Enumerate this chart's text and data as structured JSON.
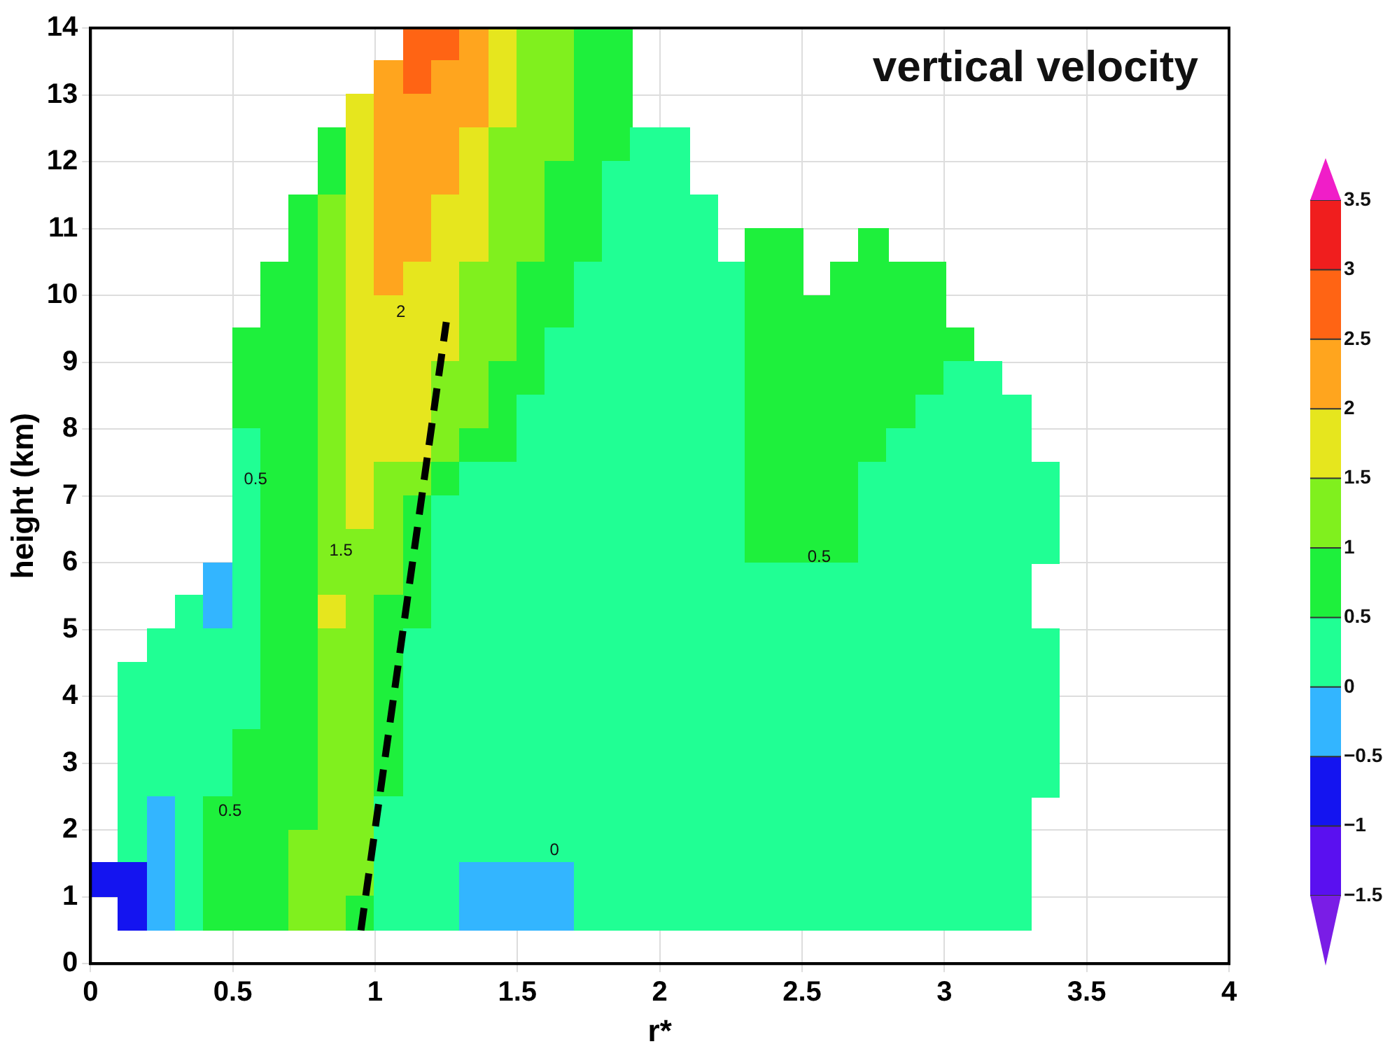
{
  "chart_data": {
    "type": "heatmap",
    "title": "vertical velocity",
    "xlabel": "r*",
    "ylabel": "height (km)",
    "x": [
      0.05,
      0.15,
      0.25,
      0.35,
      0.45,
      0.55,
      0.65,
      0.75,
      0.85,
      0.95,
      1.05,
      1.15,
      1.25,
      1.35,
      1.45,
      1.55,
      1.65,
      1.75,
      1.85,
      1.95,
      2.05,
      2.15,
      2.25,
      2.35,
      2.45,
      2.55,
      2.65,
      2.75,
      2.85,
      2.95,
      3.05,
      3.15,
      3.25,
      3.35
    ],
    "y": [
      13.75,
      13.25,
      12.75,
      12.25,
      11.75,
      11.25,
      10.75,
      10.25,
      9.75,
      9.25,
      8.75,
      8.25,
      7.75,
      7.25,
      6.75,
      6.25,
      5.75,
      5.25,
      4.75,
      4.25,
      3.75,
      3.25,
      2.75,
      2.25,
      1.75,
      1.25,
      0.75
    ],
    "cells": [
      [
        null,
        null,
        null,
        null,
        null,
        null,
        null,
        null,
        null,
        null,
        null,
        2.75,
        2.75,
        2.25,
        1.75,
        1.25,
        1.25,
        0.75,
        0.75,
        null,
        null,
        null,
        null,
        null,
        null,
        null,
        null,
        null,
        null,
        null,
        null,
        null,
        null,
        null
      ],
      [
        null,
        null,
        null,
        null,
        null,
        null,
        null,
        null,
        null,
        null,
        2.25,
        2.75,
        2.25,
        2.25,
        1.75,
        1.25,
        1.25,
        0.75,
        0.75,
        null,
        null,
        null,
        null,
        null,
        null,
        null,
        null,
        null,
        null,
        null,
        null,
        null,
        null,
        null
      ],
      [
        null,
        null,
        null,
        null,
        null,
        null,
        null,
        null,
        null,
        1.75,
        2.25,
        2.25,
        2.25,
        2.25,
        1.75,
        1.25,
        1.25,
        0.75,
        0.75,
        null,
        null,
        null,
        null,
        null,
        null,
        null,
        null,
        null,
        null,
        null,
        null,
        null,
        null,
        null
      ],
      [
        null,
        null,
        null,
        null,
        null,
        null,
        null,
        null,
        0.75,
        1.75,
        2.25,
        2.25,
        2.25,
        1.75,
        1.25,
        1.25,
        1.25,
        0.75,
        0.75,
        0.25,
        0.25,
        null,
        null,
        null,
        null,
        null,
        null,
        null,
        null,
        null,
        null,
        null,
        null,
        null
      ],
      [
        null,
        null,
        null,
        null,
        null,
        null,
        null,
        null,
        0.75,
        1.75,
        2.25,
        2.25,
        2.25,
        1.75,
        1.25,
        1.25,
        0.75,
        0.75,
        0.25,
        0.25,
        0.25,
        null,
        null,
        null,
        null,
        null,
        null,
        null,
        null,
        null,
        null,
        null,
        null,
        null
      ],
      [
        null,
        null,
        null,
        null,
        null,
        null,
        null,
        0.75,
        1.25,
        1.75,
        2.25,
        2.25,
        1.75,
        1.75,
        1.25,
        1.25,
        0.75,
        0.75,
        0.25,
        0.25,
        0.25,
        0.25,
        null,
        null,
        null,
        null,
        null,
        null,
        null,
        null,
        null,
        null,
        null,
        null
      ],
      [
        null,
        null,
        null,
        null,
        null,
        null,
        null,
        0.75,
        1.25,
        1.75,
        2.25,
        2.25,
        1.75,
        1.75,
        1.25,
        1.25,
        0.75,
        0.75,
        0.25,
        0.25,
        0.25,
        0.25,
        null,
        0.75,
        0.75,
        null,
        null,
        0.75,
        null,
        null,
        null,
        null,
        null,
        null
      ],
      [
        null,
        null,
        null,
        null,
        null,
        null,
        0.75,
        0.75,
        1.25,
        1.75,
        2.25,
        1.75,
        1.75,
        1.25,
        1.25,
        0.75,
        0.75,
        0.25,
        0.25,
        0.25,
        0.25,
        0.25,
        0.25,
        0.75,
        0.75,
        null,
        0.75,
        0.75,
        0.75,
        0.75,
        null,
        null,
        null,
        null
      ],
      [
        null,
        null,
        null,
        null,
        null,
        null,
        0.75,
        0.75,
        1.25,
        1.75,
        1.75,
        1.75,
        1.75,
        1.25,
        1.25,
        0.75,
        0.75,
        0.25,
        0.25,
        0.25,
        0.25,
        0.25,
        0.25,
        0.75,
        0.75,
        0.75,
        0.75,
        0.75,
        0.75,
        0.75,
        null,
        null,
        null,
        null
      ],
      [
        null,
        null,
        null,
        null,
        null,
        0.75,
        0.75,
        0.75,
        1.25,
        1.75,
        1.75,
        1.75,
        1.75,
        1.25,
        1.25,
        0.75,
        0.25,
        0.25,
        0.25,
        0.25,
        0.25,
        0.25,
        0.25,
        0.75,
        0.75,
        0.75,
        0.75,
        0.75,
        0.75,
        0.75,
        0.75,
        null,
        null,
        null
      ],
      [
        null,
        null,
        null,
        null,
        null,
        0.75,
        0.75,
        0.75,
        1.25,
        1.75,
        1.75,
        1.75,
        1.25,
        1.25,
        0.75,
        0.75,
        0.25,
        0.25,
        0.25,
        0.25,
        0.25,
        0.25,
        0.25,
        0.75,
        0.75,
        0.75,
        0.75,
        0.75,
        0.75,
        0.75,
        0.25,
        0.25,
        null,
        null
      ],
      [
        null,
        null,
        null,
        null,
        null,
        0.75,
        0.75,
        0.75,
        1.25,
        1.75,
        1.75,
        1.75,
        1.25,
        1.25,
        0.75,
        0.25,
        0.25,
        0.25,
        0.25,
        0.25,
        0.25,
        0.25,
        0.25,
        0.75,
        0.75,
        0.75,
        0.75,
        0.75,
        0.75,
        0.25,
        0.25,
        0.25,
        0.25,
        null
      ],
      [
        null,
        null,
        null,
        null,
        null,
        0.25,
        0.75,
        0.75,
        1.25,
        1.75,
        1.75,
        1.75,
        1.25,
        0.75,
        0.75,
        0.25,
        0.25,
        0.25,
        0.25,
        0.25,
        0.25,
        0.25,
        0.25,
        0.75,
        0.75,
        0.75,
        0.75,
        0.75,
        0.25,
        0.25,
        0.25,
        0.25,
        0.25,
        null
      ],
      [
        null,
        null,
        null,
        null,
        null,
        0.25,
        0.75,
        0.75,
        1.25,
        1.75,
        1.25,
        1.25,
        0.75,
        0.25,
        0.25,
        0.25,
        0.25,
        0.25,
        0.25,
        0.25,
        0.25,
        0.25,
        0.25,
        0.75,
        0.75,
        0.75,
        0.75,
        0.25,
        0.25,
        0.25,
        0.25,
        0.25,
        0.25,
        0.25
      ],
      [
        null,
        null,
        null,
        null,
        null,
        0.25,
        0.75,
        0.75,
        1.25,
        1.75,
        1.25,
        0.75,
        0.25,
        0.25,
        0.25,
        0.25,
        0.25,
        0.25,
        0.25,
        0.25,
        0.25,
        0.25,
        0.25,
        0.75,
        0.75,
        0.75,
        0.75,
        0.25,
        0.25,
        0.25,
        0.25,
        0.25,
        0.25,
        0.25
      ],
      [
        null,
        null,
        null,
        null,
        null,
        0.25,
        0.75,
        0.75,
        1.25,
        1.25,
        1.25,
        0.75,
        0.25,
        0.25,
        0.25,
        0.25,
        0.25,
        0.25,
        0.25,
        0.25,
        0.25,
        0.25,
        0.25,
        0.75,
        0.75,
        0.75,
        0.75,
        0.25,
        0.25,
        0.25,
        0.25,
        0.25,
        0.25,
        0.25
      ],
      [
        null,
        null,
        null,
        null,
        -0.25,
        0.25,
        0.75,
        0.75,
        1.25,
        1.25,
        1.25,
        0.75,
        0.25,
        0.25,
        0.25,
        0.25,
        0.25,
        0.25,
        0.25,
        0.25,
        0.25,
        0.25,
        0.25,
        0.25,
        0.25,
        0.25,
        0.25,
        0.25,
        0.25,
        0.25,
        0.25,
        0.25,
        0.25,
        null
      ],
      [
        null,
        null,
        null,
        0.25,
        -0.25,
        0.25,
        0.75,
        0.75,
        1.75,
        1.25,
        0.75,
        0.75,
        0.25,
        0.25,
        0.25,
        0.25,
        0.25,
        0.25,
        0.25,
        0.25,
        0.25,
        0.25,
        0.25,
        0.25,
        0.25,
        0.25,
        0.25,
        0.25,
        0.25,
        0.25,
        0.25,
        0.25,
        0.25,
        null
      ],
      [
        null,
        null,
        0.25,
        0.25,
        0.25,
        0.25,
        0.75,
        0.75,
        1.25,
        1.25,
        0.75,
        0.25,
        0.25,
        0.25,
        0.25,
        0.25,
        0.25,
        0.25,
        0.25,
        0.25,
        0.25,
        0.25,
        0.25,
        0.25,
        0.25,
        0.25,
        0.25,
        0.25,
        0.25,
        0.25,
        0.25,
        0.25,
        0.25,
        0.25
      ],
      [
        null,
        0.25,
        0.25,
        0.25,
        0.25,
        0.25,
        0.75,
        0.75,
        1.25,
        1.25,
        0.75,
        0.25,
        0.25,
        0.25,
        0.25,
        0.25,
        0.25,
        0.25,
        0.25,
        0.25,
        0.25,
        0.25,
        0.25,
        0.25,
        0.25,
        0.25,
        0.25,
        0.25,
        0.25,
        0.25,
        0.25,
        0.25,
        0.25,
        0.25
      ],
      [
        null,
        0.25,
        0.25,
        0.25,
        0.25,
        0.25,
        0.75,
        0.75,
        1.25,
        1.25,
        0.75,
        0.25,
        0.25,
        0.25,
        0.25,
        0.25,
        0.25,
        0.25,
        0.25,
        0.25,
        0.25,
        0.25,
        0.25,
        0.25,
        0.25,
        0.25,
        0.25,
        0.25,
        0.25,
        0.25,
        0.25,
        0.25,
        0.25,
        0.25
      ],
      [
        null,
        0.25,
        0.25,
        0.25,
        0.25,
        0.75,
        0.75,
        0.75,
        1.25,
        1.25,
        0.75,
        0.25,
        0.25,
        0.25,
        0.25,
        0.25,
        0.25,
        0.25,
        0.25,
        0.25,
        0.25,
        0.25,
        0.25,
        0.25,
        0.25,
        0.25,
        0.25,
        0.25,
        0.25,
        0.25,
        0.25,
        0.25,
        0.25,
        0.25
      ],
      [
        null,
        0.25,
        0.25,
        0.25,
        0.25,
        0.75,
        0.75,
        0.75,
        1.25,
        1.25,
        0.75,
        0.25,
        0.25,
        0.25,
        0.25,
        0.25,
        0.25,
        0.25,
        0.25,
        0.25,
        0.25,
        0.25,
        0.25,
        0.25,
        0.25,
        0.25,
        0.25,
        0.25,
        0.25,
        0.25,
        0.25,
        0.25,
        0.25,
        0.25
      ],
      [
        null,
        0.25,
        -0.25,
        0.25,
        0.75,
        0.75,
        0.75,
        0.75,
        1.25,
        1.25,
        0.25,
        0.25,
        0.25,
        0.25,
        0.25,
        0.25,
        0.25,
        0.25,
        0.25,
        0.25,
        0.25,
        0.25,
        0.25,
        0.25,
        0.25,
        0.25,
        0.25,
        0.25,
        0.25,
        0.25,
        0.25,
        0.25,
        0.25,
        null
      ],
      [
        null,
        0.25,
        -0.25,
        0.25,
        0.75,
        0.75,
        0.75,
        1.25,
        1.25,
        1.25,
        0.25,
        0.25,
        0.25,
        0.25,
        0.25,
        0.25,
        0.25,
        0.25,
        0.25,
        0.25,
        0.25,
        0.25,
        0.25,
        0.25,
        0.25,
        0.25,
        0.25,
        0.25,
        0.25,
        0.25,
        0.25,
        0.25,
        0.25,
        null
      ],
      [
        -0.75,
        -0.75,
        -0.25,
        0.25,
        0.75,
        0.75,
        0.75,
        1.25,
        1.25,
        1.25,
        0.25,
        0.25,
        0.25,
        -0.25,
        -0.25,
        -0.25,
        -0.25,
        0.25,
        0.25,
        0.25,
        0.25,
        0.25,
        0.25,
        0.25,
        0.25,
        0.25,
        0.25,
        0.25,
        0.25,
        0.25,
        0.25,
        0.25,
        0.25,
        null
      ],
      [
        null,
        -0.75,
        -0.25,
        0.25,
        0.75,
        0.75,
        0.75,
        1.25,
        1.25,
        0.75,
        0.25,
        0.25,
        0.25,
        -0.25,
        -0.25,
        -0.25,
        -0.25,
        0.25,
        0.25,
        0.25,
        0.25,
        0.25,
        0.25,
        0.25,
        0.25,
        0.25,
        0.25,
        0.25,
        0.25,
        0.25,
        0.25,
        0.25,
        0.25,
        null
      ]
    ],
    "colors": [
      "#7a1de6",
      "#5a10f0",
      "#1414f0",
      "#33b5ff",
      "#20ff94",
      "#1ef03c",
      "#80f01e",
      "#e6e61e",
      "#ffa51e",
      "#ff6414",
      "#f01e1e",
      "#f01ec8"
    ],
    "clim": [
      -1.5,
      3.5
    ],
    "cticks": [
      {
        "value": -1.5,
        "label": "−1.5"
      },
      {
        "value": -1,
        "label": "−1"
      },
      {
        "value": -0.5,
        "label": "−0.5"
      },
      0,
      0.5,
      1,
      1.5,
      2,
      2.5,
      3,
      3.5
    ],
    "series": [
      {
        "type": "line",
        "x": [
          0.95,
          1.25
        ],
        "values": [
          0.5,
          9.6
        ],
        "color": "#000000",
        "line_style": "dashed"
      }
    ],
    "annotations": [
      "2",
      "0.5",
      "1.5",
      "0.5",
      "0",
      "0.5"
    ],
    "xlim": [
      0,
      4
    ],
    "xticks": [
      0,
      0.5,
      1,
      1.5,
      2,
      2.5,
      3,
      3.5,
      4
    ],
    "ylim": [
      0,
      14
    ],
    "yticks": [
      0,
      1,
      2,
      3,
      4,
      5,
      6,
      7,
      8,
      9,
      10,
      11,
      12,
      13,
      14
    ],
    "grid": true,
    "legend": false,
    "marker": "none"
  }
}
